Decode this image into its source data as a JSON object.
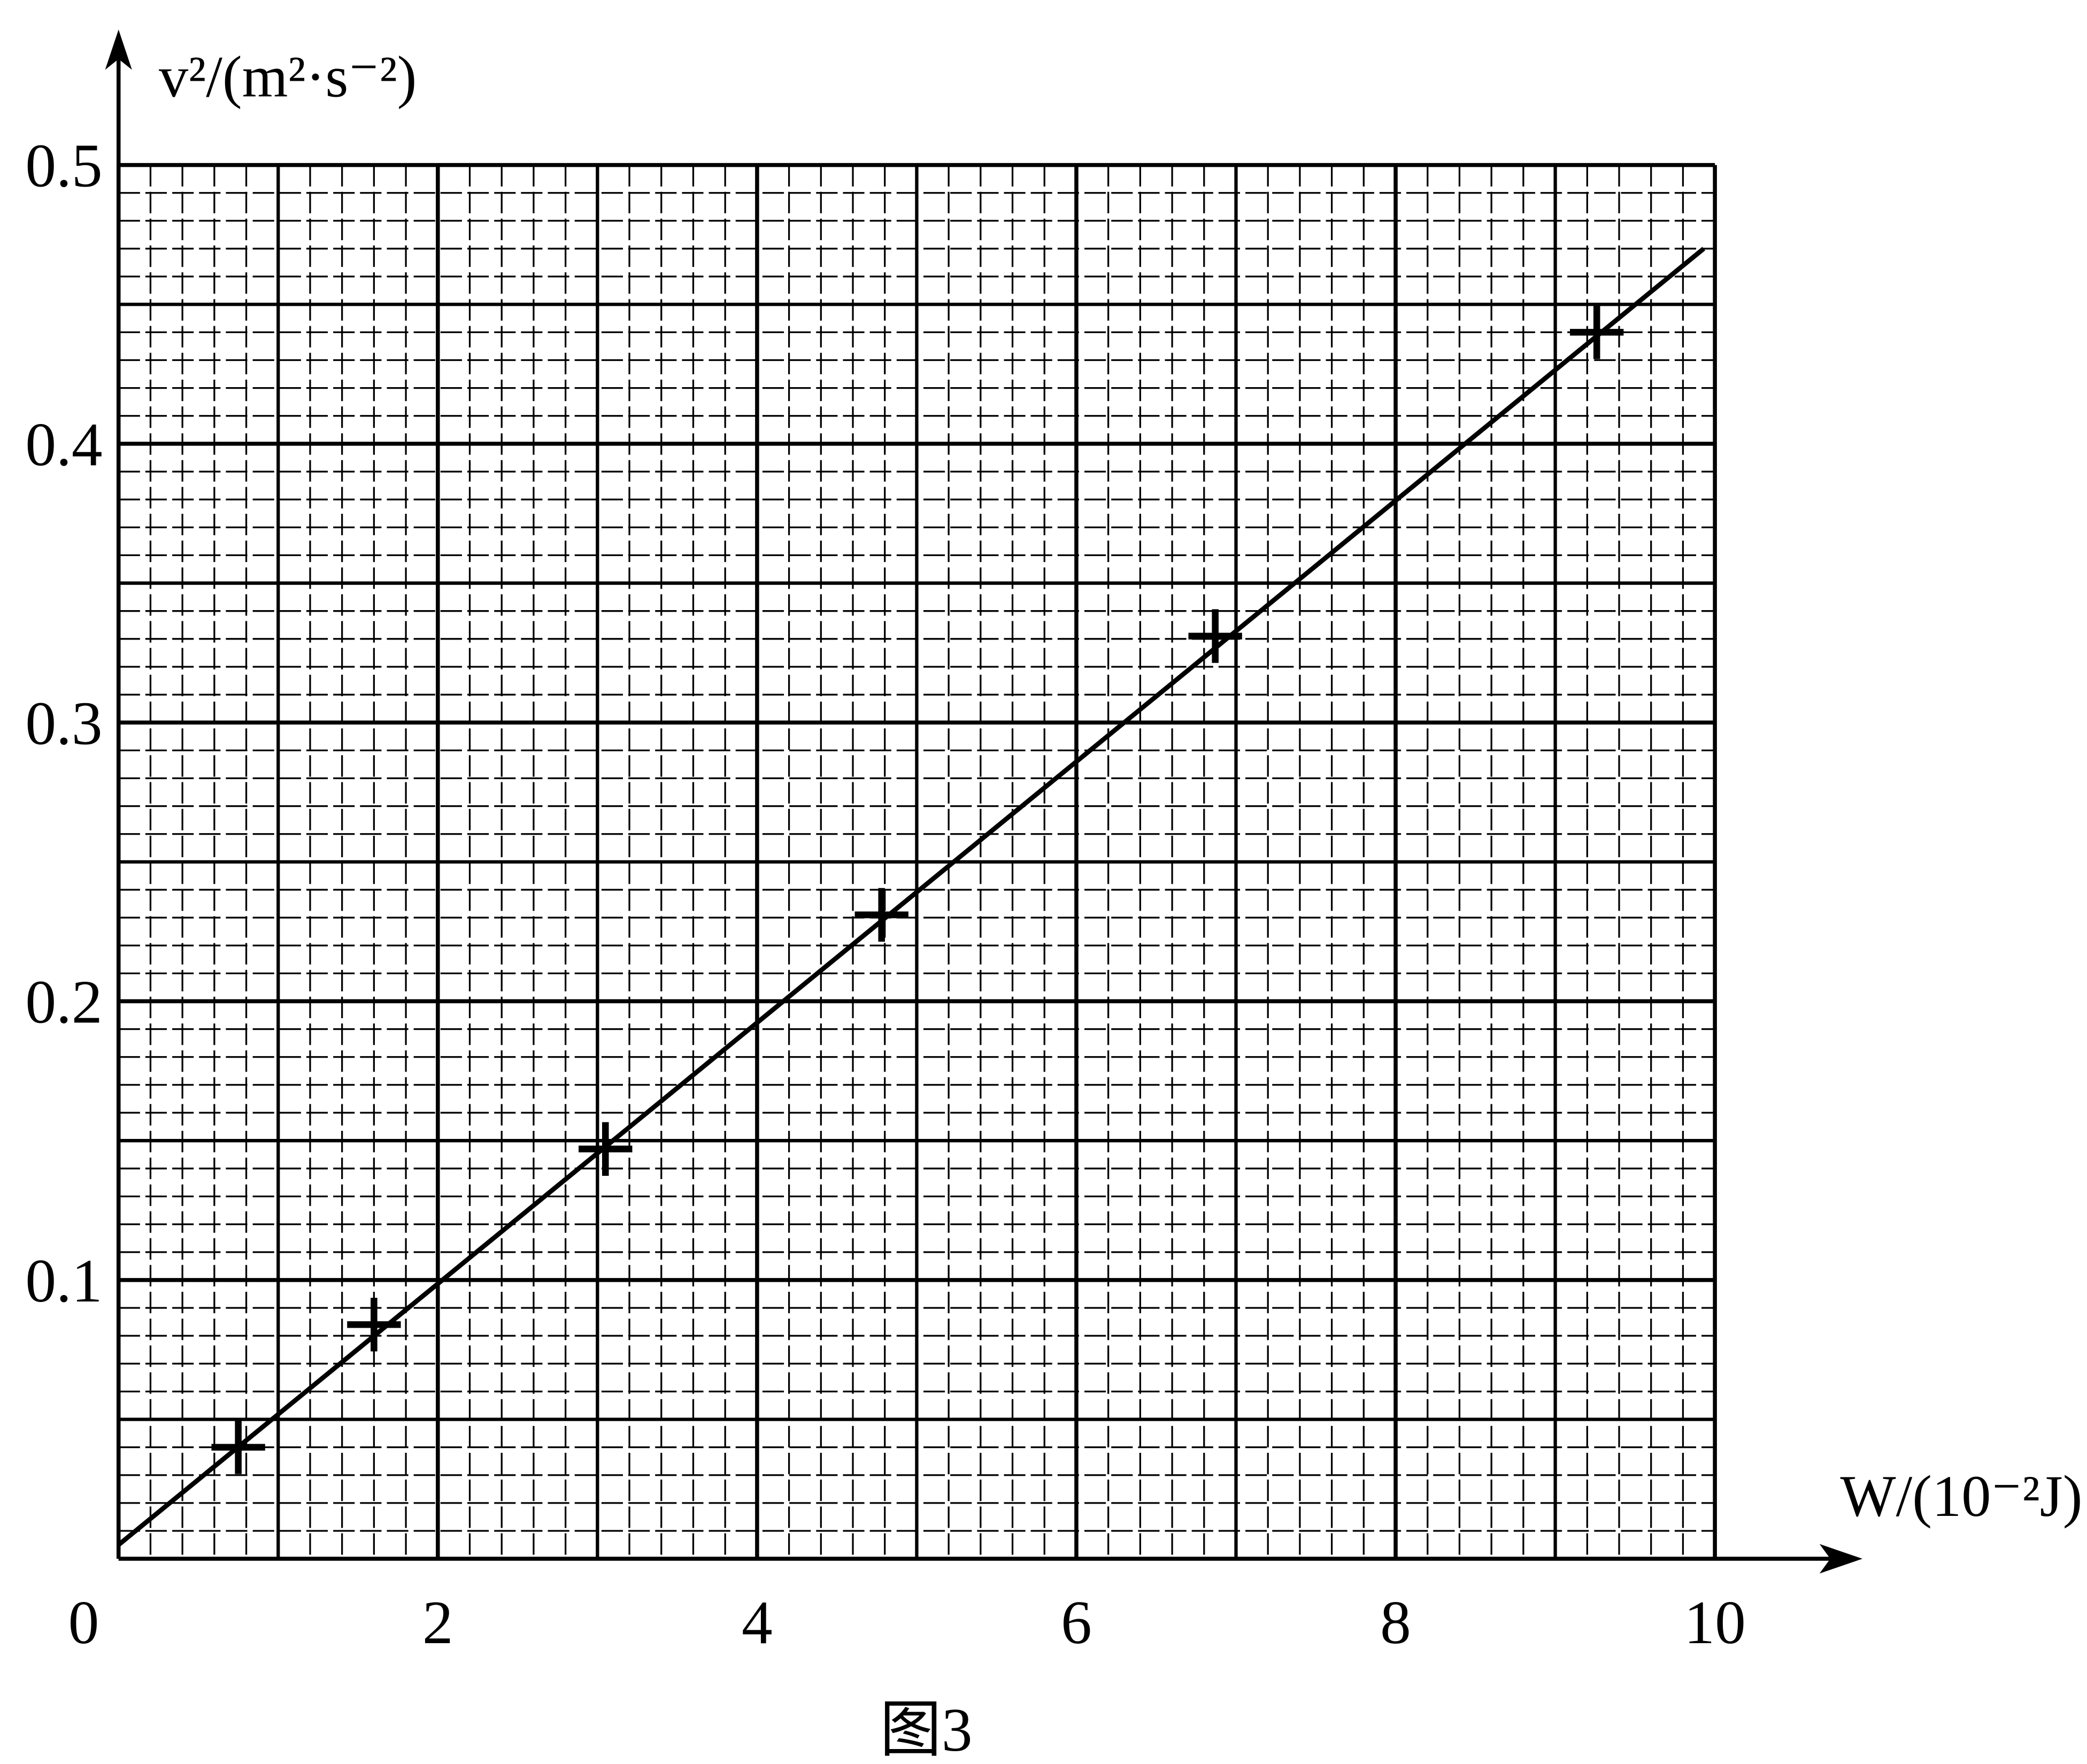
{
  "chart_data": {
    "type": "scatter",
    "y_label": "v²/(m²·s⁻²)",
    "x_label": "W/(10⁻²J)",
    "caption": "图3",
    "xlim": [
      0,
      10
    ],
    "ylim": [
      0,
      0.5
    ],
    "xticks": [
      0,
      2,
      4,
      6,
      8,
      10
    ],
    "yticks": [
      0.1,
      0.2,
      0.3,
      0.4,
      0.5
    ],
    "grid": true,
    "series": [
      {
        "style": "marker",
        "color": "#000000",
        "x": [
          0.75,
          1.6,
          3.05,
          4.78,
          6.87,
          9.26
        ],
        "values": [
          0.04,
          0.084,
          0.147,
          0.231,
          0.331,
          0.44
        ]
      },
      {
        "style": "line",
        "color": "#000000",
        "x": [
          0,
          9.93
        ],
        "values": [
          0.005,
          0.47
        ]
      }
    ]
  }
}
